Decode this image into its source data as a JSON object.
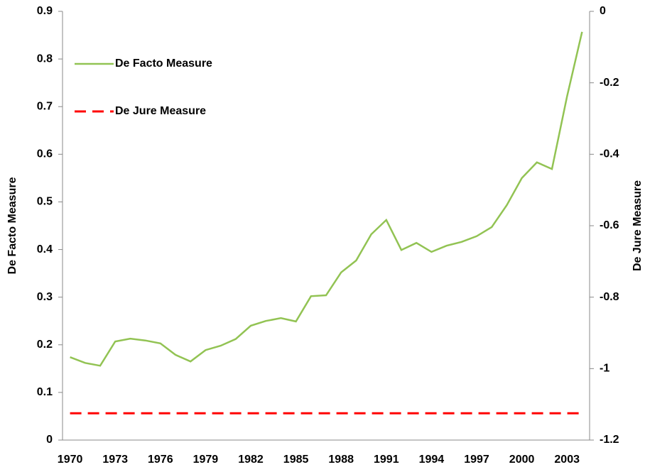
{
  "chart_data": {
    "type": "line",
    "categories": [
      "1970",
      null,
      null,
      "1973",
      null,
      null,
      "1976",
      null,
      null,
      "1979",
      null,
      null,
      "1982",
      null,
      null,
      "1985",
      null,
      null,
      "1988",
      null,
      null,
      "1991",
      null,
      null,
      "1994",
      null,
      null,
      "1997",
      null,
      null,
      "2000",
      null,
      null,
      "2003",
      null
    ],
    "series": [
      {
        "name": "De Facto Measure",
        "color": "#92c353",
        "dash": false,
        "values": [
          0.174,
          0.162,
          0.156,
          0.207,
          0.213,
          0.209,
          0.203,
          0.179,
          0.165,
          0.189,
          0.198,
          0.212,
          0.24,
          0.25,
          0.256,
          0.249,
          0.302,
          0.304,
          0.352,
          0.377,
          0.432,
          0.462,
          0.399,
          0.414,
          0.395,
          0.408,
          0.416,
          0.428,
          0.447,
          0.493,
          0.55,
          0.583,
          0.569,
          0.721,
          0.857
        ]
      },
      {
        "name": "De Jure Measure",
        "color": "#ff0000",
        "dash": true,
        "axis": "y2",
        "values": [
          -1.125,
          -1.125,
          -1.125,
          -1.125,
          -1.125,
          -1.125,
          -1.125,
          -1.125,
          -1.125,
          -1.125,
          -1.125,
          -1.125,
          -1.125,
          -1.125,
          -1.125,
          -1.125,
          -1.125,
          -1.125,
          -1.125,
          -1.125,
          -1.125,
          -1.125,
          -1.125,
          -1.125,
          -1.125,
          -1.125,
          -1.125,
          -1.125,
          -1.125,
          -1.125,
          -1.125,
          -1.125,
          -1.125,
          -1.125,
          -1.125
        ]
      }
    ],
    "y_label": "De Facto Measure",
    "y2_label": "De Jure Measure",
    "ylim": [
      0,
      0.9
    ],
    "yticks": [
      0,
      0.1,
      0.2,
      0.3,
      0.4,
      0.5,
      0.6,
      0.7,
      0.8,
      0.9
    ],
    "y2lim": [
      -1.2,
      0
    ],
    "y2ticks": [
      0,
      -0.2,
      -0.4,
      -0.6,
      -0.8,
      -1,
      -1.2
    ],
    "legend": "top-left",
    "grid": false
  }
}
